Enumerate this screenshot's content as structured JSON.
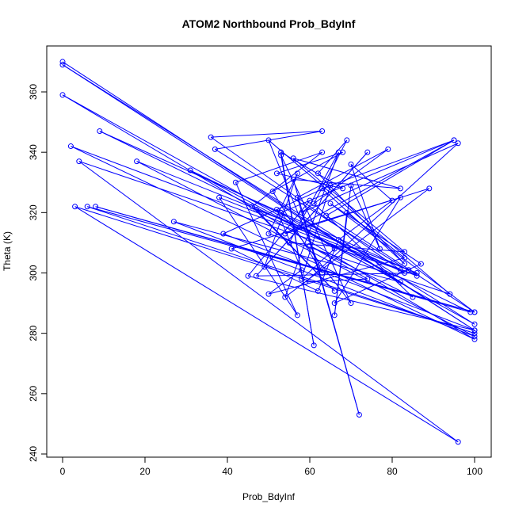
{
  "chart_data": {
    "type": "line",
    "title": "ATOM2 Northbound Prob_BdyInf",
    "xlabel": "Prob_BdyInf",
    "ylabel": "Theta (K)",
    "xlim": [
      0,
      100
    ],
    "ylim": [
      240,
      372
    ],
    "xticks": [
      "0",
      "20",
      "40",
      "60",
      "80",
      "100"
    ],
    "yticks": [
      "240",
      "260",
      "280",
      "300",
      "320",
      "340",
      "360"
    ],
    "grid": false,
    "legend": "none",
    "series_color": "#0000ff",
    "markers": "open-circle",
    "series": [
      {
        "values": [
          [
            0,
            370
          ],
          [
            100,
            281
          ],
          [
            0,
            369
          ],
          [
            100,
            283
          ],
          [
            0,
            359
          ],
          [
            100,
            278
          ],
          [
            2,
            342
          ],
          [
            82,
            301
          ],
          [
            4,
            337
          ],
          [
            96,
            244
          ],
          [
            3,
            322
          ],
          [
            100,
            280
          ],
          [
            6,
            322
          ],
          [
            100,
            287
          ],
          [
            8,
            322
          ],
          [
            99,
            287
          ],
          [
            9,
            347
          ],
          [
            84,
            301
          ],
          [
            18,
            337
          ],
          [
            100,
            279
          ],
          [
            27,
            317
          ],
          [
            82,
            297
          ],
          [
            31,
            334
          ],
          [
            83,
            300
          ],
          [
            36,
            345
          ],
          [
            63,
            347
          ],
          [
            37,
            341
          ],
          [
            86,
            299
          ],
          [
            38,
            325
          ],
          [
            57,
            286
          ],
          [
            42,
            330
          ],
          [
            63,
            340
          ],
          [
            46,
            322
          ],
          [
            66,
            294
          ],
          [
            47,
            321
          ],
          [
            86,
            300
          ],
          [
            47,
            299
          ],
          [
            74,
            340
          ],
          [
            49,
            302
          ],
          [
            57,
            333
          ],
          [
            50,
            313
          ],
          [
            94,
            293
          ],
          [
            50,
            344
          ],
          [
            63,
            300
          ],
          [
            51,
            327
          ],
          [
            68,
            340
          ],
          [
            52,
            333
          ],
          [
            68,
            328
          ],
          [
            53,
            340
          ],
          [
            61,
            276
          ],
          [
            53,
            339
          ],
          [
            70,
            290
          ],
          [
            53,
            320
          ],
          [
            95,
            344
          ],
          [
            54,
            313
          ],
          [
            89,
            328
          ],
          [
            54,
            292
          ],
          [
            67,
            340
          ],
          [
            55,
            310
          ],
          [
            83,
            307
          ],
          [
            56,
            338
          ],
          [
            82,
            328
          ],
          [
            56,
            331
          ],
          [
            72,
            253
          ],
          [
            57,
            325
          ],
          [
            79,
            341
          ],
          [
            58,
            320
          ],
          [
            96,
            343
          ],
          [
            59,
            297
          ],
          [
            74,
            298
          ],
          [
            60,
            309
          ],
          [
            85,
            292
          ],
          [
            61,
            323
          ],
          [
            69,
            344
          ],
          [
            62,
            333
          ],
          [
            83,
            303
          ],
          [
            63,
            328
          ],
          [
            95,
            344
          ],
          [
            64,
            319
          ],
          [
            100,
            287
          ],
          [
            65,
            323
          ],
          [
            87,
            303
          ],
          [
            66,
            290
          ],
          [
            82,
            325
          ],
          [
            41,
            308
          ],
          [
            62,
            294
          ],
          [
            67,
            311
          ],
          [
            80,
            324
          ],
          [
            70,
            336
          ],
          [
            77,
            308
          ],
          [
            70,
            329
          ],
          [
            66,
            286
          ],
          [
            69,
            320
          ],
          [
            83,
            305
          ],
          [
            50,
            293
          ],
          [
            58,
            301
          ],
          [
            52,
            321
          ],
          [
            66,
            308
          ],
          [
            58,
            298
          ],
          [
            65,
            329
          ],
          [
            39,
            313
          ],
          [
            100,
            281
          ],
          [
            45,
            299
          ],
          [
            60,
            324
          ]
        ]
      }
    ]
  }
}
